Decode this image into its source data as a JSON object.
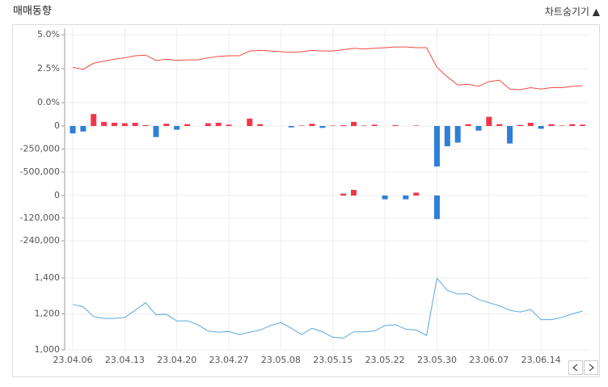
{
  "header": {
    "title": "매매동향",
    "toggle": "차트숨기기 ▲"
  },
  "chart_data": [
    {
      "type": "line",
      "color": "#f0493e",
      "ylim": [
        -0.5,
        5.5
      ],
      "yticks": [
        {
          "value": 5,
          "label": "5.0%"
        },
        {
          "value": 2.5,
          "label": "2.5%"
        },
        {
          "value": 0,
          "label": "0.0%"
        }
      ],
      "values": [
        2.6,
        2.45,
        2.9,
        3.05,
        3.2,
        3.3,
        3.45,
        3.5,
        3.1,
        3.2,
        3.1,
        3.15,
        3.15,
        3.3,
        3.4,
        3.45,
        3.45,
        3.8,
        3.85,
        3.8,
        3.75,
        3.7,
        3.75,
        3.85,
        3.8,
        3.8,
        3.9,
        4.0,
        3.95,
        4.0,
        4.05,
        4.1,
        4.1,
        4.05,
        4.05,
        2.6,
        1.9,
        1.3,
        1.35,
        1.2,
        1.55,
        1.65,
        1.0,
        0.95,
        1.1,
        1.0,
        1.1,
        1.1,
        1.2,
        1.25
      ]
    },
    {
      "type": "bar",
      "positive_color": "#f0364b",
      "negative_color": "#2f7ed8",
      "ylim": [
        -580000,
        190000
      ],
      "yticks": [
        0,
        {
          "value": -250000,
          "label": "-250,000"
        },
        {
          "value": -500000,
          "label": "-500,000"
        }
      ],
      "values": [
        -80000,
        -60000,
        130000,
        45000,
        35000,
        30000,
        35000,
        10000,
        -120000,
        25000,
        -40000,
        20000,
        0,
        30000,
        35000,
        15000,
        0,
        80000,
        20000,
        0,
        0,
        -15000,
        5000,
        25000,
        -20000,
        5000,
        10000,
        45000,
        5000,
        15000,
        0,
        10000,
        0,
        5000,
        0,
        -440000,
        -220000,
        -180000,
        20000,
        -50000,
        100000,
        20000,
        -190000,
        10000,
        35000,
        -30000,
        20000,
        5000,
        20000,
        15000
      ]
    },
    {
      "type": "bar",
      "positive_color": "#f0364b",
      "negative_color": "#2f7ed8",
      "ylim": [
        -280000,
        60000
      ],
      "yticks": [
        0,
        {
          "value": -120000,
          "label": "-120,000"
        },
        {
          "value": -240000,
          "label": "-240,000"
        }
      ],
      "values": [
        0,
        0,
        0,
        0,
        0,
        0,
        0,
        0,
        0,
        0,
        0,
        0,
        0,
        0,
        0,
        0,
        0,
        0,
        0,
        0,
        0,
        0,
        0,
        0,
        0,
        0,
        10000,
        30000,
        0,
        0,
        -20000,
        0,
        -20000,
        15000,
        0,
        -125000,
        0,
        0,
        0,
        0,
        0,
        0,
        0,
        0,
        0,
        0,
        0,
        0,
        0,
        0
      ]
    },
    {
      "type": "line",
      "color": "#5aa6e0",
      "ylim": [
        1000,
        1520
      ],
      "yticks": [
        {
          "value": 1400,
          "label": "1,400"
        },
        {
          "value": 1200,
          "label": "1,200"
        },
        {
          "value": 1000,
          "label": "1,000"
        }
      ],
      "categories": [
        "23.04.06",
        null,
        null,
        null,
        null,
        "23.04.13",
        null,
        null,
        null,
        null,
        "23.04.20",
        null,
        null,
        null,
        null,
        "23.04.27",
        null,
        null,
        null,
        null,
        "23.05.08",
        null,
        null,
        null,
        null,
        "23.05.15",
        null,
        null,
        null,
        null,
        "23.05.22",
        null,
        null,
        null,
        null,
        "23.05.30",
        null,
        null,
        null,
        null,
        "23.06.07",
        null,
        null,
        null,
        null,
        "23.06.14",
        null,
        null,
        null,
        null
      ],
      "values": [
        1252,
        1240,
        1185,
        1175,
        1175,
        1180,
        1220,
        1262,
        1195,
        1198,
        1160,
        1162,
        1140,
        1105,
        1098,
        1102,
        1085,
        1098,
        1110,
        1135,
        1152,
        1120,
        1085,
        1120,
        1100,
        1070,
        1065,
        1100,
        1100,
        1105,
        1135,
        1140,
        1115,
        1110,
        1080,
        1398,
        1330,
        1310,
        1312,
        1280,
        1262,
        1245,
        1220,
        1210,
        1225,
        1168,
        1168,
        1180,
        1200,
        1215
      ]
    }
  ]
}
